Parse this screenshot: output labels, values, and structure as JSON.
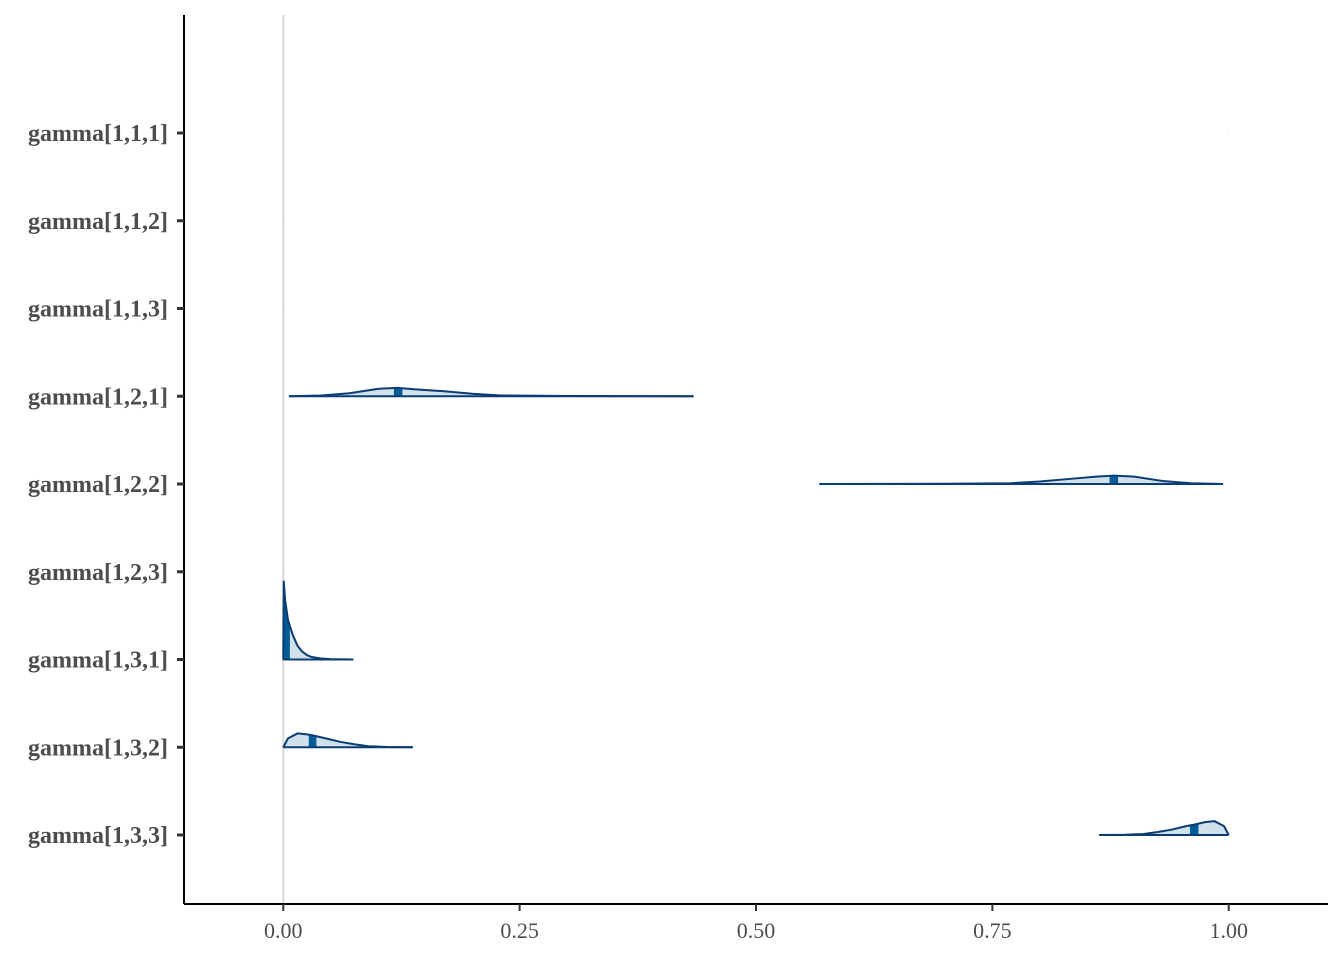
{
  "chart_data": {
    "type": "area",
    "title": "",
    "xlabel": "",
    "ylabel": "",
    "xlim": [
      -0.105,
      1.105
    ],
    "x_ticks": [
      0.0,
      0.25,
      0.5,
      0.75,
      1.0
    ],
    "x_tick_labels": [
      "0.00",
      "0.25",
      "0.50",
      "0.75",
      "1.00"
    ],
    "reference_line_x": 0,
    "grid": false,
    "colors": {
      "line": "#0b3d73",
      "fill": "#d1e1ec",
      "interval": "#005b96",
      "axis": "#000000",
      "ref": "#d9d9d9"
    },
    "parameters": [
      {
        "label": "gamma[1,1,1]",
        "range": [
          0.9999,
          1.0
        ],
        "median": 1.0,
        "inner": [
          1.0,
          1.0
        ],
        "density": []
      },
      {
        "label": "gamma[1,1,2]",
        "range": [
          0.0,
          0.0001
        ],
        "median": 0.0,
        "inner": [
          0.0,
          0.0
        ],
        "density": []
      },
      {
        "label": "gamma[1,1,3]",
        "range": [
          0.0,
          0.0001
        ],
        "median": 0.0,
        "inner": [
          0.0,
          0.0
        ],
        "density": []
      },
      {
        "label": "gamma[1,2,1]",
        "range": [
          0.006,
          0.434
        ],
        "median": 0.121,
        "inner": [
          0.117,
          0.126
        ],
        "density": [
          [
            0.006,
            0.0
          ],
          [
            0.04,
            0.08
          ],
          [
            0.07,
            0.3
          ],
          [
            0.1,
            0.75
          ],
          [
            0.121,
            0.85
          ],
          [
            0.14,
            0.7
          ],
          [
            0.17,
            0.5
          ],
          [
            0.2,
            0.25
          ],
          [
            0.23,
            0.08
          ],
          [
            0.3,
            0.02
          ],
          [
            0.434,
            0.0
          ]
        ]
      },
      {
        "label": "gamma[1,2,2]",
        "range": [
          0.567,
          0.994
        ],
        "median": 0.879,
        "inner": [
          0.874,
          0.883
        ],
        "density": [
          [
            0.567,
            0.0
          ],
          [
            0.7,
            0.02
          ],
          [
            0.77,
            0.08
          ],
          [
            0.8,
            0.25
          ],
          [
            0.83,
            0.5
          ],
          [
            0.86,
            0.75
          ],
          [
            0.879,
            0.85
          ],
          [
            0.9,
            0.75
          ],
          [
            0.93,
            0.3
          ],
          [
            0.96,
            0.08
          ],
          [
            0.994,
            0.0
          ]
        ]
      },
      {
        "label": "gamma[1,2,3]",
        "range": [
          0.0,
          0.0001
        ],
        "median": 0.0,
        "inner": [
          0.0,
          0.0
        ],
        "density": []
      },
      {
        "label": "gamma[1,3,1]",
        "range": [
          0.0,
          0.074
        ],
        "median": 0.0025,
        "inner": [
          0.0,
          0.007
        ],
        "density": [
          [
            0.0,
            0.0
          ],
          [
            0.0005,
            7.9
          ],
          [
            0.002,
            6.0
          ],
          [
            0.005,
            4.0
          ],
          [
            0.01,
            2.5
          ],
          [
            0.015,
            1.4
          ],
          [
            0.02,
            0.8
          ],
          [
            0.025,
            0.45
          ],
          [
            0.03,
            0.25
          ],
          [
            0.04,
            0.1
          ],
          [
            0.05,
            0.04
          ],
          [
            0.074,
            0.0
          ]
        ]
      },
      {
        "label": "gamma[1,3,2]",
        "range": [
          0.0,
          0.137
        ],
        "median": 0.031,
        "inner": [
          0.027,
          0.035
        ],
        "density": [
          [
            0.0,
            0.0
          ],
          [
            0.005,
            0.9
          ],
          [
            0.015,
            1.4
          ],
          [
            0.025,
            1.3
          ],
          [
            0.031,
            1.2
          ],
          [
            0.045,
            0.9
          ],
          [
            0.06,
            0.55
          ],
          [
            0.075,
            0.3
          ],
          [
            0.09,
            0.1
          ],
          [
            0.11,
            0.03
          ],
          [
            0.137,
            0.0
          ]
        ]
      },
      {
        "label": "gamma[1,3,3]",
        "range": [
          0.863,
          1.0
        ],
        "median": 0.9635,
        "inner": [
          0.959,
          0.968
        ],
        "density": [
          [
            0.863,
            0.0
          ],
          [
            0.89,
            0.03
          ],
          [
            0.91,
            0.1
          ],
          [
            0.925,
            0.3
          ],
          [
            0.94,
            0.55
          ],
          [
            0.955,
            0.9
          ],
          [
            0.9635,
            1.05
          ],
          [
            0.975,
            1.3
          ],
          [
            0.985,
            1.4
          ],
          [
            0.995,
            0.9
          ],
          [
            1.0,
            0.0
          ]
        ]
      }
    ]
  }
}
